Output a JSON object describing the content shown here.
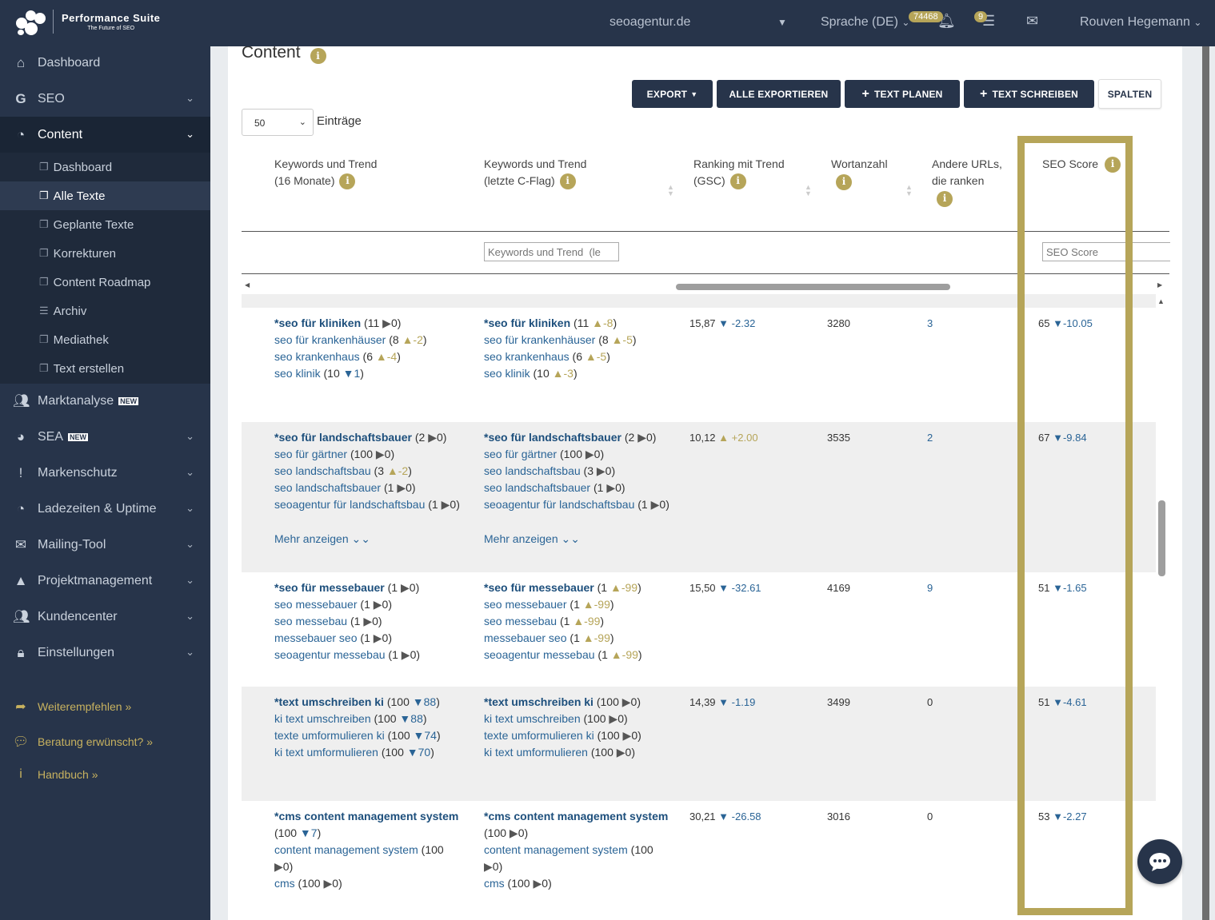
{
  "topbar": {
    "brand_title": "Performance Suite",
    "brand_sub": "The Future of SEO",
    "domain": "seoagentur.de",
    "language": "Sprache (DE)",
    "notifications_count": "74468",
    "tasks_count": "9",
    "user": "Rouven Hegemann"
  },
  "sidebar": {
    "items": [
      {
        "label": "Dashboard",
        "icon": "home-icon"
      },
      {
        "label": "SEO",
        "icon": "google-icon"
      },
      {
        "label": "Content",
        "icon": "clock-icon"
      },
      {
        "label": "Marktanalyse",
        "icon": "users-icon",
        "tag": "NEW"
      },
      {
        "label": "SEA",
        "icon": "pie-icon",
        "tag": "NEW"
      },
      {
        "label": "Markenschutz",
        "icon": "exclamation-icon"
      },
      {
        "label": "Ladezeiten & Uptime",
        "icon": "clock-icon"
      },
      {
        "label": "Mailing-Tool",
        "icon": "envelope-icon"
      },
      {
        "label": "Projektmanagement",
        "icon": "road-icon"
      },
      {
        "label": "Kundencenter",
        "icon": "users-icon"
      },
      {
        "label": "Einstellungen",
        "icon": "lock-icon"
      }
    ],
    "content_sub": [
      "Dashboard",
      "Alle Texte",
      "Geplante Texte",
      "Korrekturen",
      "Content Roadmap",
      "Archiv",
      "Mediathek",
      "Text erstellen"
    ],
    "links": [
      "Weiterempfehlen »",
      "Beratung erwünscht? »",
      "Handbuch »"
    ]
  },
  "main": {
    "title": "Content",
    "buttons": {
      "export": "EXPORT",
      "export_all": "ALLE EXPORTIEREN",
      "plan": "TEXT PLANEN",
      "write": "TEXT SCHREIBEN",
      "columns": "SPALTEN"
    },
    "page_size": "50",
    "entries_label": "Einträge",
    "columns": {
      "kw16_line1": "Keywords und Trend",
      "kw16_line2": "(16 Monate)",
      "kwc_line1": "Keywords und Trend",
      "kwc_line2": "(letzte C-Flag)",
      "rank_line1": "Ranking mit Trend",
      "rank_line2": "(GSC)",
      "words": "Wortanzahl",
      "urls_line1": "Andere URLs,",
      "urls_line2": "die ranken",
      "seo": "SEO Score"
    },
    "filters": {
      "kwc": "Keywords und Trend  (le",
      "seo": "SEO Score"
    },
    "more_label": "Mehr anzeigen",
    "rows": [
      {
        "kw16": [
          [
            "*seo für kliniken",
            "11",
            "▶",
            "0"
          ],
          [
            "seo für krankenhäuser",
            "8",
            "▲",
            "-2"
          ],
          [
            "seo krankenhaus",
            "6",
            "▲",
            "-4"
          ],
          [
            "seo klinik",
            "10",
            "▼",
            "1"
          ]
        ],
        "kwc": [
          [
            "*seo für kliniken",
            "11",
            "▲",
            "-8"
          ],
          [
            "seo für krankenhäuser",
            "8",
            "▲",
            "-5"
          ],
          [
            "seo krankenhaus",
            "6",
            "▲",
            "-5"
          ],
          [
            "seo klinik",
            "10",
            "▲",
            "-3"
          ]
        ],
        "rank": "15,87",
        "rank_dir": "▼",
        "rank_delta": "-2.32",
        "words": "3280",
        "urls": "3",
        "seo": "65",
        "seo_dir": "▼",
        "seo_delta": "-10.05"
      },
      {
        "kw16": [
          [
            "*seo für landschaftsbauer",
            "2",
            "▶",
            "0"
          ],
          [
            "seo für gärtner",
            "100",
            "▶",
            "0"
          ],
          [
            "seo landschaftsbau",
            "3",
            "▲",
            "-2"
          ],
          [
            "seo landschaftsbauer",
            "1",
            "▶",
            "0"
          ],
          [
            "seoagentur für landschaftsbau",
            "1",
            "▶",
            "0"
          ]
        ],
        "kwc": [
          [
            "*seo für landschaftsbauer",
            "2",
            "▶",
            "0"
          ],
          [
            "seo für gärtner",
            "100",
            "▶",
            "0"
          ],
          [
            "seo landschaftsbau",
            "3",
            "▶",
            "0"
          ],
          [
            "seo landschaftsbauer",
            "1",
            "▶",
            "0"
          ],
          [
            "seoagentur für landschaftsbau",
            "1",
            "▶",
            "0"
          ]
        ],
        "rank": "10,12",
        "rank_dir": "▲",
        "rank_delta": "+2.00",
        "words": "3535",
        "urls": "2",
        "seo": "67",
        "seo_dir": "▼",
        "seo_delta": "-9.84"
      },
      {
        "kw16": [
          [
            "*seo für messebauer",
            "1",
            "▶",
            "0"
          ],
          [
            "seo messebauer",
            "1",
            "▶",
            "0"
          ],
          [
            "seo messebau",
            "1",
            "▶",
            "0"
          ],
          [
            "messebauer seo",
            "1",
            "▶",
            "0"
          ],
          [
            "seoagentur messebau",
            "1",
            "▶",
            "0"
          ]
        ],
        "kwc": [
          [
            "*seo für messebauer",
            "1",
            "▲",
            "-99"
          ],
          [
            "seo messebauer",
            "1",
            "▲",
            "-99"
          ],
          [
            "seo messebau",
            "1",
            "▲",
            "-99"
          ],
          [
            "messebauer seo",
            "1",
            "▲",
            "-99"
          ],
          [
            "seoagentur messebau",
            "1",
            "▲",
            "-99"
          ]
        ],
        "rank": "15,50",
        "rank_dir": "▼",
        "rank_delta": "-32.61",
        "words": "4169",
        "urls": "9",
        "seo": "51",
        "seo_dir": "▼",
        "seo_delta": "-1.65"
      },
      {
        "kw16": [
          [
            "*text umschreiben ki",
            "100",
            "▼",
            "88"
          ],
          [
            "ki text umschreiben",
            "100",
            "▼",
            "88"
          ],
          [
            "texte umformulieren ki",
            "100",
            "▼",
            "74"
          ],
          [
            "ki text umformulieren",
            "100",
            "▼",
            "70"
          ]
        ],
        "kwc": [
          [
            "*text umschreiben ki",
            "100",
            "▶",
            "0"
          ],
          [
            "ki text umschreiben",
            "100",
            "▶",
            "0"
          ],
          [
            "texte umformulieren ki",
            "100",
            "▶",
            "0"
          ],
          [
            "ki text umformulieren",
            "100",
            "▶",
            "0"
          ]
        ],
        "rank": "14,39",
        "rank_dir": "▼",
        "rank_delta": "-1.19",
        "words": "3499",
        "urls": "0",
        "seo": "51",
        "seo_dir": "▼",
        "seo_delta": "-4.61"
      },
      {
        "kw16": [
          [
            "*cms content management system",
            "100",
            "▼",
            "7"
          ],
          [
            "content management system",
            "100",
            "▶",
            "0"
          ],
          [
            "cms",
            "100",
            "▶",
            "0"
          ]
        ],
        "kwc": [
          [
            "*cms content management system",
            "100",
            "▶",
            "0"
          ],
          [
            "content management system",
            "100",
            "▶",
            "0"
          ],
          [
            "cms",
            "100",
            "▶",
            "0"
          ]
        ],
        "rank": "30,21",
        "rank_dir": "▼",
        "rank_delta": "-26.58",
        "words": "3016",
        "urls": "0",
        "seo": "53",
        "seo_dir": "▼",
        "seo_delta": "-2.27"
      }
    ]
  },
  "colors": {
    "accent": "#b6a559",
    "nav": "#27344a",
    "link": "#2a6496"
  }
}
